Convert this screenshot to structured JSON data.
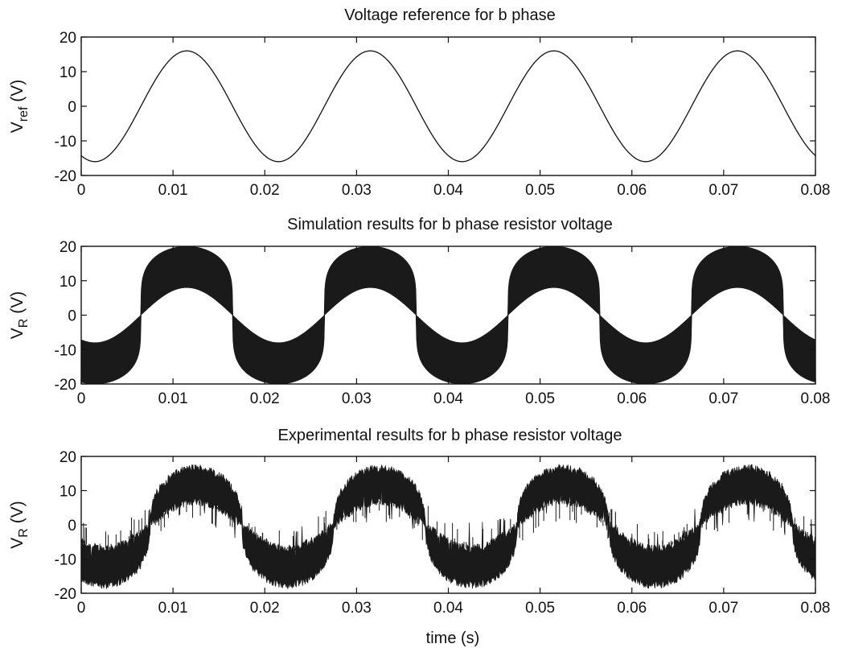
{
  "figure": {
    "xlabel": "time (s)"
  },
  "chart_data": [
    {
      "type": "line",
      "title": "Voltage reference for b phase",
      "ylabel_main": "V",
      "ylabel_sub": "ref",
      "ylabel_unit": " (V)",
      "xlim": [
        0,
        0.08
      ],
      "ylim": [
        -20,
        20
      ],
      "xticks": [
        0,
        0.01,
        0.02,
        0.03,
        0.04,
        0.05,
        0.06,
        0.07,
        0.08
      ],
      "xtick_labels": [
        "0",
        "0.01",
        "0.02",
        "0.03",
        "0.04",
        "0.05",
        "0.06",
        "0.07",
        "0.08"
      ],
      "yticks": [
        -20,
        -10,
        0,
        10,
        20
      ],
      "ytick_labels": [
        "-20",
        "-10",
        "0",
        "10",
        "20"
      ],
      "grid": false,
      "series": [
        {
          "kind": "sine",
          "amplitude": 16,
          "frequency_hz": 50,
          "peak_times": [
            0.0115,
            0.0315,
            0.0515,
            0.0715
          ],
          "trough_times": [
            0.0015,
            0.0215,
            0.0415,
            0.0615
          ],
          "color": "#111111"
        }
      ]
    },
    {
      "type": "area",
      "title": "Simulation results for b phase resistor voltage",
      "ylabel_main": "V",
      "ylabel_sub": "R",
      "ylabel_unit": " (V)",
      "xlim": [
        0,
        0.08
      ],
      "ylim": [
        -20,
        20
      ],
      "xticks": [
        0,
        0.01,
        0.02,
        0.03,
        0.04,
        0.05,
        0.06,
        0.07,
        0.08
      ],
      "xtick_labels": [
        "0",
        "0.01",
        "0.02",
        "0.03",
        "0.04",
        "0.05",
        "0.06",
        "0.07",
        "0.08"
      ],
      "yticks": [
        -20,
        -10,
        0,
        10,
        20
      ],
      "ytick_labels": [
        "-20",
        "-10",
        "0",
        "10",
        "20"
      ],
      "grid": false,
      "series": [
        {
          "kind": "pwm_envelope",
          "switching_bound": 20,
          "inner_bound": 8,
          "frequency_hz": 50,
          "zero_crossings": [
            0.0065,
            0.0165,
            0.0265,
            0.0365,
            0.0465,
            0.0565,
            0.0665,
            0.0765
          ],
          "color": "#1a1a1a"
        }
      ]
    },
    {
      "type": "area",
      "title": "Experimental results for b phase resistor voltage",
      "ylabel_main": "V",
      "ylabel_sub": "R",
      "ylabel_unit": " (V)",
      "xlim": [
        0,
        0.08
      ],
      "ylim": [
        -20,
        20
      ],
      "xticks": [
        0,
        0.01,
        0.02,
        0.03,
        0.04,
        0.05,
        0.06,
        0.07,
        0.08
      ],
      "xtick_labels": [
        "0",
        "0.01",
        "0.02",
        "0.03",
        "0.04",
        "0.05",
        "0.06",
        "0.07",
        "0.08"
      ],
      "yticks": [
        -20,
        -10,
        0,
        10,
        20
      ],
      "ytick_labels": [
        "-20",
        "-10",
        "0",
        "10",
        "20"
      ],
      "grid": false,
      "series": [
        {
          "kind": "noisy_pwm_envelope",
          "peak_level": 18,
          "inner_level": 7,
          "frequency_hz": 50,
          "color": "#1a1a1a"
        }
      ]
    }
  ]
}
